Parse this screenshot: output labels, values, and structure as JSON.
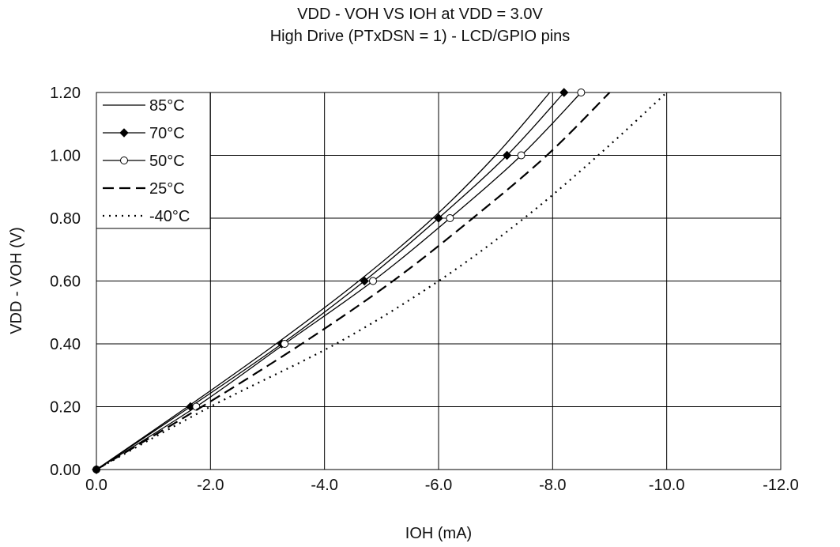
{
  "chart_data": {
    "type": "line",
    "title": "VDD - VOH VS IOH at VDD = 3.0V",
    "subtitle": "High Drive (PTxDSN = 1) - LCD/GPIO pins",
    "xlabel": "IOH (mA)",
    "ylabel": "VDD - VOH (V)",
    "xlim": [
      0.0,
      -12.0
    ],
    "ylim": [
      0.0,
      1.2
    ],
    "x_ticks": [
      "0.0",
      "-2.0",
      "-4.0",
      "-6.0",
      "-8.0",
      "-10.0",
      "-12.0"
    ],
    "y_ticks": [
      "0.00",
      "0.20",
      "0.40",
      "0.60",
      "0.80",
      "1.00",
      "1.20"
    ],
    "grid": true,
    "legend_position": "top-left",
    "series": [
      {
        "name": "85°C",
        "marker": "none",
        "dash": "solid",
        "points": [
          [
            0.0,
            0.0
          ],
          [
            -1.6,
            0.2
          ],
          [
            -3.15,
            0.4
          ],
          [
            -4.6,
            0.6
          ],
          [
            -5.9,
            0.8
          ],
          [
            -7.0,
            1.0
          ],
          [
            -7.95,
            1.2
          ]
        ]
      },
      {
        "name": "70°C",
        "marker": "diamond",
        "dash": "solid",
        "points": [
          [
            0.0,
            0.0
          ],
          [
            -1.65,
            0.2
          ],
          [
            -3.25,
            0.4
          ],
          [
            -4.7,
            0.6
          ],
          [
            -6.0,
            0.8
          ],
          [
            -7.2,
            1.0
          ],
          [
            -8.2,
            1.2
          ]
        ]
      },
      {
        "name": "50°C",
        "marker": "circle",
        "dash": "solid",
        "points": [
          [
            0.0,
            0.0
          ],
          [
            -1.75,
            0.2
          ],
          [
            -3.3,
            0.4
          ],
          [
            -4.85,
            0.6
          ],
          [
            -6.2,
            0.8
          ],
          [
            -7.45,
            1.0
          ],
          [
            -8.5,
            1.2
          ]
        ]
      },
      {
        "name": "25°C",
        "marker": "none",
        "dash": "dashed",
        "points": [
          [
            0.0,
            0.0
          ],
          [
            -1.85,
            0.2
          ],
          [
            -3.6,
            0.4
          ],
          [
            -5.2,
            0.6
          ],
          [
            -6.6,
            0.8
          ],
          [
            -7.9,
            1.0
          ],
          [
            -9.0,
            1.2
          ]
        ]
      },
      {
        "name": "-40°C",
        "marker": "none",
        "dash": "dotted",
        "points": [
          [
            0.0,
            0.0
          ],
          [
            -2.0,
            0.2
          ],
          [
            -4.2,
            0.4
          ],
          [
            -6.0,
            0.6
          ],
          [
            -7.5,
            0.8
          ],
          [
            -8.8,
            1.0
          ],
          [
            -10.0,
            1.2
          ]
        ]
      }
    ]
  }
}
